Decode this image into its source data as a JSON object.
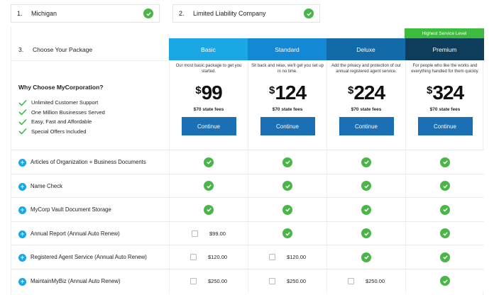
{
  "steps": [
    {
      "num": "1.",
      "label": "Michigan"
    },
    {
      "num": "2.",
      "label": "Limited Liability Company"
    }
  ],
  "package_step": {
    "num": "3.",
    "label": "Choose Your Package"
  },
  "highlight_badge": "Highest Service Level",
  "why": {
    "title": "Why Choose MyCorporation?",
    "items": [
      "Unlimited Customer Support",
      "One Million Businesses Served",
      "Easy, Fast and Affordable",
      "Special Offers Included"
    ]
  },
  "plans": [
    {
      "name": "Basic",
      "desc": "Our most basic package to get you started.",
      "currency": "$",
      "price": "99",
      "fees": "$70 state fees",
      "cta": "Continue"
    },
    {
      "name": "Standard",
      "desc": "Sit back and relax, we'll get you set up in no time.",
      "currency": "$",
      "price": "124",
      "fees": "$70 state fees",
      "cta": "Continue"
    },
    {
      "name": "Deluxe",
      "desc": "Add the privacy and protection of our annual registered agent service.",
      "currency": "$",
      "price": "224",
      "fees": "$70 state fees",
      "cta": "Continue"
    },
    {
      "name": "Premium",
      "desc": "For people who like the works and everything handled for them quickly.",
      "currency": "$",
      "price": "324",
      "fees": "$70 state fees",
      "cta": "Continue"
    }
  ],
  "features": [
    {
      "label": "Articles of Organization + Business Documents",
      "cells": [
        {
          "type": "check"
        },
        {
          "type": "check"
        },
        {
          "type": "check"
        },
        {
          "type": "check"
        }
      ]
    },
    {
      "label": "Name Check",
      "cells": [
        {
          "type": "check"
        },
        {
          "type": "check"
        },
        {
          "type": "check"
        },
        {
          "type": "check"
        }
      ]
    },
    {
      "label": "MyCorp Vault Document Storage",
      "cells": [
        {
          "type": "check"
        },
        {
          "type": "check"
        },
        {
          "type": "check"
        },
        {
          "type": "check"
        }
      ]
    },
    {
      "label": "Annual Report (Annual Auto Renew)",
      "cells": [
        {
          "type": "option",
          "price": "$99.00"
        },
        {
          "type": "check"
        },
        {
          "type": "check"
        },
        {
          "type": "check"
        }
      ]
    },
    {
      "label": "Registered Agent Service (Annual Auto Renew)",
      "cells": [
        {
          "type": "option",
          "price": "$120.00"
        },
        {
          "type": "option",
          "price": "$120.00"
        },
        {
          "type": "check"
        },
        {
          "type": "check"
        }
      ]
    },
    {
      "label": "MaintainMyBiz (Annual Auto Renew)",
      "cells": [
        {
          "type": "option",
          "price": "$250.00"
        },
        {
          "type": "option",
          "price": "$250.00"
        },
        {
          "type": "option",
          "price": "$250.00"
        },
        {
          "type": "check"
        }
      ]
    }
  ],
  "colors": {
    "check": "#4cb54a",
    "accent": "#1aa7e4",
    "button": "#1a6fb5"
  }
}
